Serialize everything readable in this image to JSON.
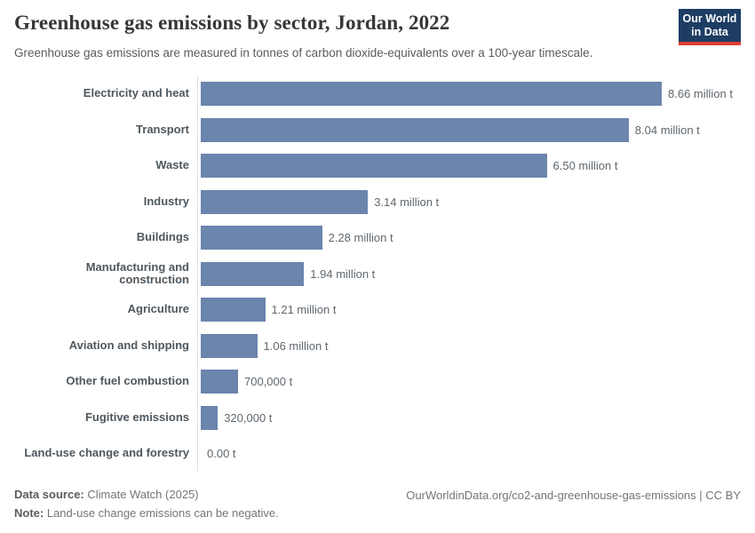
{
  "header": {
    "title": "Greenhouse gas emissions by sector, Jordan, 2022",
    "subtitle": "Greenhouse gas emissions are measured in tonnes of carbon dioxide-equivalents over a 100-year timescale.",
    "logo": {
      "line1": "Our World",
      "line2": "in Data",
      "bg_color": "#1d3d63",
      "accent_color": "#dc3e32"
    }
  },
  "chart_data": {
    "type": "bar",
    "orientation": "horizontal",
    "title": "Greenhouse gas emissions by sector, Jordan, 2022",
    "unit": "tonnes of carbon dioxide-equivalents",
    "categories": [
      "Electricity and heat",
      "Transport",
      "Waste",
      "Industry",
      "Buildings",
      "Manufacturing and construction",
      "Agriculture",
      "Aviation and shipping",
      "Other fuel combustion",
      "Fugitive emissions",
      "Land-use change and forestry"
    ],
    "values_million_t": [
      8.66,
      8.04,
      6.5,
      3.14,
      2.28,
      1.94,
      1.21,
      1.06,
      0.7,
      0.32,
      0.0
    ],
    "value_labels": [
      "8.66 million t",
      "8.04 million t",
      "6.50 million t",
      "3.14 million t",
      "2.28 million t",
      "1.94 million t",
      "1.21 million t",
      "1.06 million t",
      "700,000 t",
      "320,000 t",
      "0.00 t"
    ],
    "bar_color": "#6b85ad",
    "axis_line_color": "#dcdcdc",
    "xlim_million_t": [
      0,
      8.66
    ],
    "grid": false,
    "legend": "none"
  },
  "footer": {
    "data_source_label": "Data source:",
    "data_source_value": "Climate Watch (2025)",
    "note_label": "Note:",
    "note_value": "Land-use change emissions can be negative.",
    "citation": "OurWorldinData.org/co2-and-greenhouse-gas-emissions | CC BY"
  }
}
